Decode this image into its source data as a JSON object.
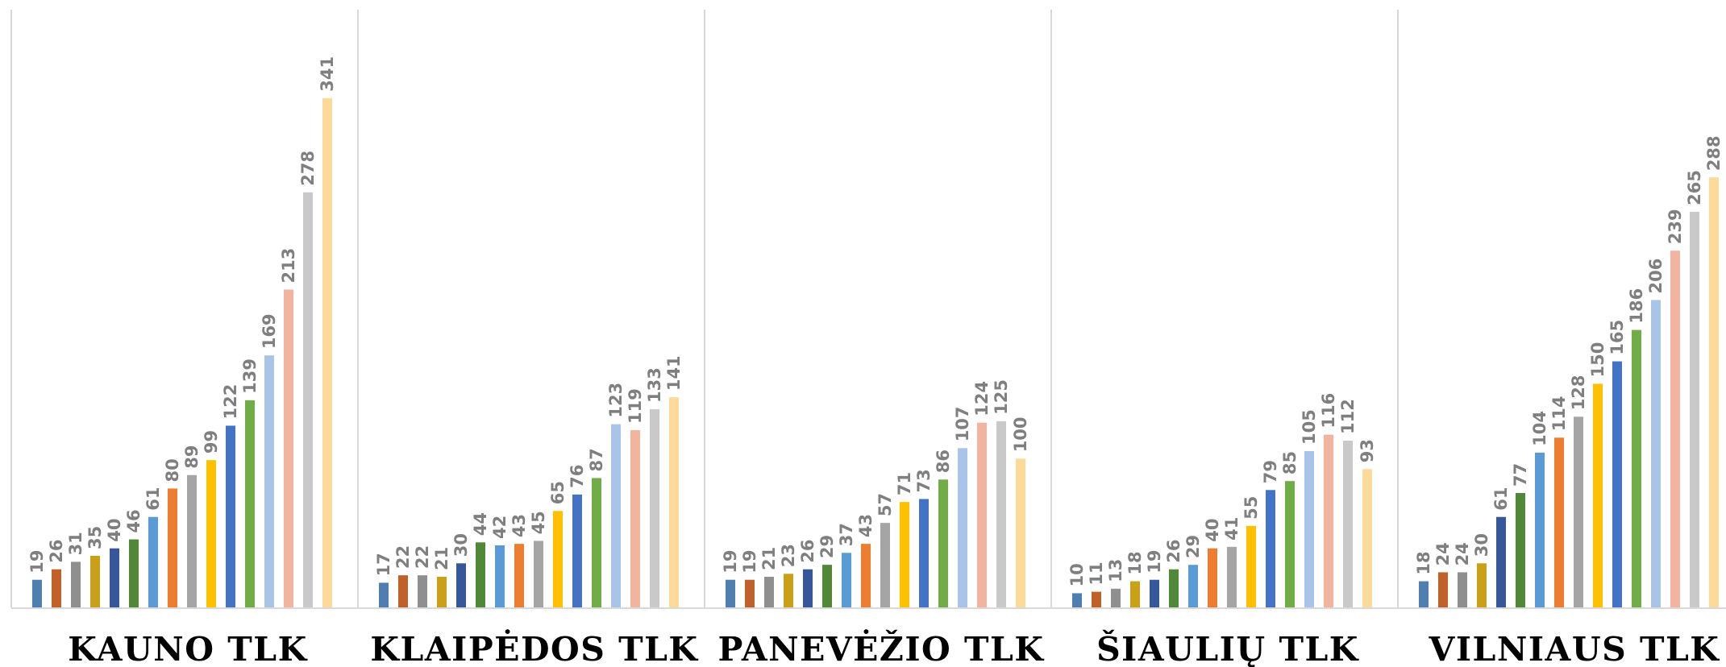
{
  "chart_data": {
    "type": "bar",
    "categories": [
      "KAUNO TLK",
      "KLAIPĖDOS TLK",
      "PANEVĖŽIO TLK",
      "ŠIAULIŲ TLK",
      "VILNIAUS TLK"
    ],
    "series": [
      {
        "values": [
          19,
          17,
          19,
          10,
          18
        ]
      },
      {
        "values": [
          26,
          22,
          19,
          11,
          24
        ]
      },
      {
        "values": [
          31,
          22,
          21,
          13,
          24
        ]
      },
      {
        "values": [
          35,
          21,
          23,
          18,
          30
        ]
      },
      {
        "values": [
          40,
          30,
          26,
          19,
          61
        ]
      },
      {
        "values": [
          46,
          44,
          29,
          26,
          77
        ]
      },
      {
        "values": [
          61,
          42,
          37,
          29,
          104
        ]
      },
      {
        "values": [
          80,
          43,
          43,
          40,
          114
        ]
      },
      {
        "values": [
          89,
          45,
          57,
          41,
          128
        ]
      },
      {
        "values": [
          99,
          65,
          71,
          55,
          150
        ]
      },
      {
        "values": [
          122,
          76,
          73,
          79,
          165
        ]
      },
      {
        "values": [
          139,
          87,
          86,
          85,
          186
        ]
      },
      {
        "values": [
          169,
          123,
          107,
          105,
          206
        ]
      },
      {
        "values": [
          213,
          119,
          124,
          116,
          239
        ]
      },
      {
        "values": [
          278,
          133,
          125,
          112,
          265
        ]
      },
      {
        "values": [
          341,
          141,
          100,
          93,
          288
        ]
      }
    ],
    "ylim": [
      0,
      400
    ],
    "grid": false,
    "legend": "none",
    "xlabel": "",
    "ylabel": "",
    "title": ""
  },
  "colors": [
    "#4e7fb0",
    "#c0612a",
    "#8f8f8f",
    "#c9a017",
    "#36589a",
    "#518838",
    "#5a9bd5",
    "#ed7d31",
    "#a5a5a5",
    "#ffc000",
    "#4472c4",
    "#70ad47",
    "#a9c4e8",
    "#f3b49f",
    "#c9c9c9",
    "#ffd999"
  ]
}
